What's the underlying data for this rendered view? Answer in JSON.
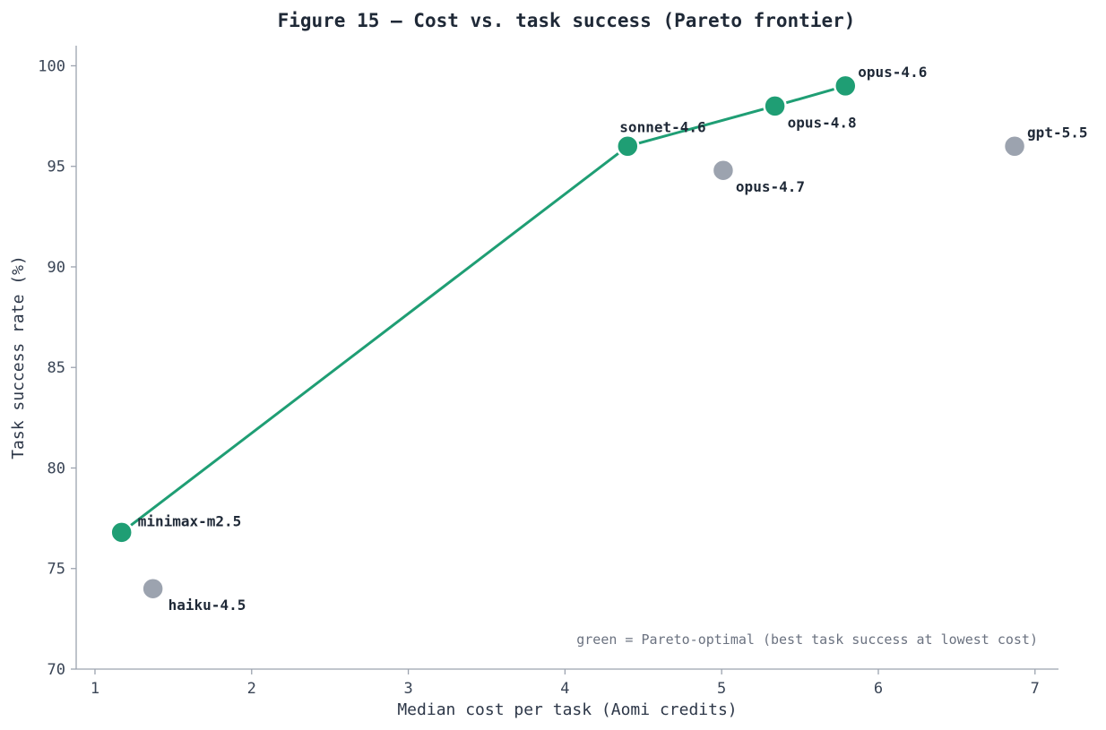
{
  "chart_data": {
    "type": "scatter",
    "title": "Figure 15 — Cost vs. task success (Pareto frontier)",
    "xlabel": "Median cost per task (Aomi credits)",
    "ylabel": "Task success rate (%)",
    "xlim": [
      0.88,
      7.15
    ],
    "ylim": [
      70,
      101
    ],
    "xticks": [
      "1",
      "2",
      "3",
      "4",
      "5",
      "6",
      "7"
    ],
    "yticks": [
      "70",
      "75",
      "80",
      "85",
      "90",
      "95",
      "100"
    ],
    "grid": false,
    "colors": {
      "pareto": "#1f9e74",
      "other": "#9ca3af"
    },
    "points": [
      {
        "name": "minimax-m2.5",
        "x": 1.17,
        "y": 76.8,
        "pareto": true
      },
      {
        "name": "haiku-4.5",
        "x": 1.37,
        "y": 74.0,
        "pareto": false
      },
      {
        "name": "sonnet-4.6",
        "x": 4.4,
        "y": 96.0,
        "pareto": true
      },
      {
        "name": "opus-4.7",
        "x": 5.01,
        "y": 94.8,
        "pareto": false
      },
      {
        "name": "opus-4.8",
        "x": 5.34,
        "y": 98.0,
        "pareto": true
      },
      {
        "name": "opus-4.6",
        "x": 5.79,
        "y": 99.0,
        "pareto": true
      },
      {
        "name": "gpt-5.5",
        "x": 6.87,
        "y": 96.0,
        "pareto": false
      }
    ],
    "frontier": [
      "minimax-m2.5",
      "sonnet-4.6",
      "opus-4.8",
      "opus-4.6"
    ],
    "annotation": "green = Pareto-optimal (best task success at lowest cost)"
  }
}
